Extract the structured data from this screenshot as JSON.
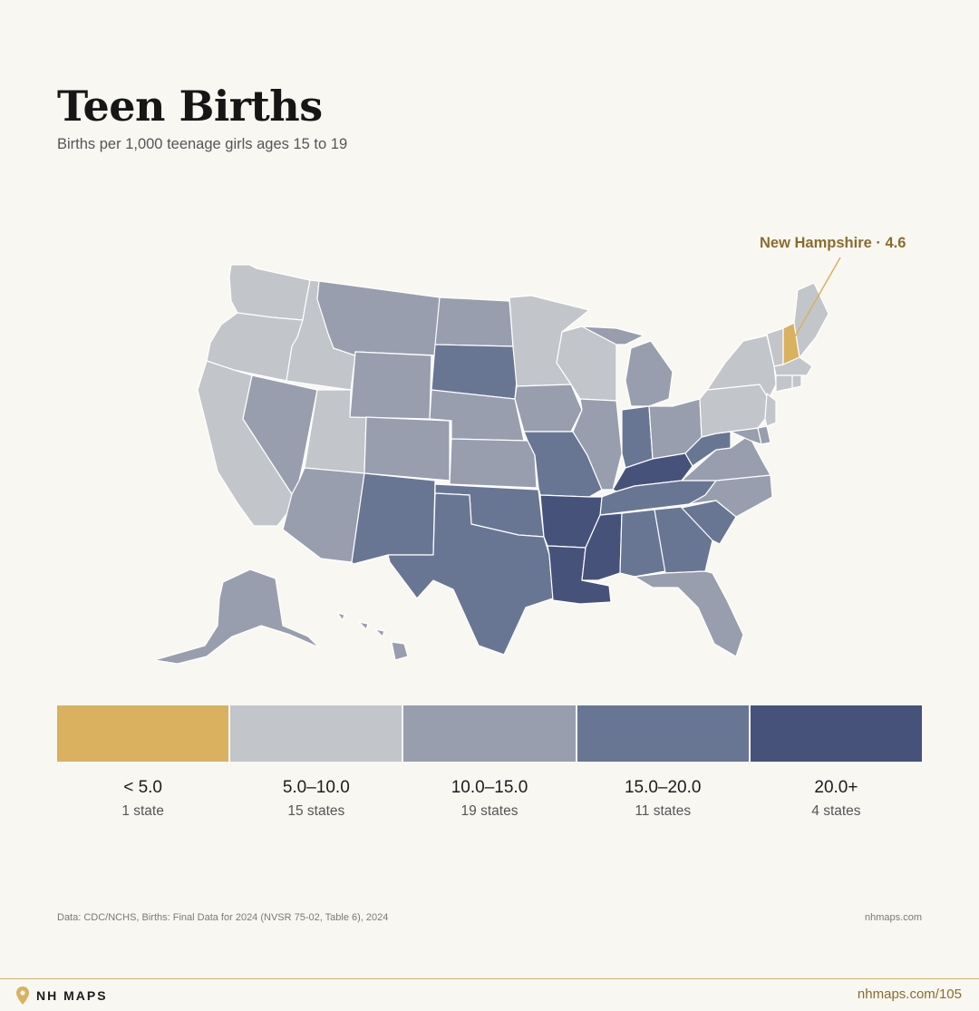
{
  "header": {
    "title": "Teen Births",
    "subtitle": "Births per 1,000 teenage girls ages 15 to 19"
  },
  "callout": {
    "label": "New Hampshire · 4.6",
    "state": "NH",
    "value": 4.6
  },
  "colors": {
    "c1": "#d9b15f",
    "c2": "#c2c5ca",
    "c3": "#989eae",
    "c4": "#697693",
    "c5": "#46527a",
    "background": "#f9f7f2",
    "accent": "#8a6d2c"
  },
  "legend": [
    {
      "range": "< 5.0",
      "count": "1 state"
    },
    {
      "range": "5.0–10.0",
      "count": "15 states"
    },
    {
      "range": "10.0–15.0",
      "count": "19 states"
    },
    {
      "range": "15.0–20.0",
      "count": "11 states"
    },
    {
      "range": "20.0+",
      "count": "4 states"
    }
  ],
  "states": {
    "WA": 2,
    "OR": 2,
    "CA": 2,
    "ID": 2,
    "UT": 2,
    "MN": 2,
    "WI": 2,
    "NY": 2,
    "PA": 2,
    "VT": 2,
    "ME": 2,
    "MA": 2,
    "CT": 2,
    "RI": 2,
    "NJ": 2,
    "NV": 3,
    "MT": 3,
    "WY": 3,
    "CO": 3,
    "ND": 3,
    "NE": 3,
    "KS": 3,
    "IA": 3,
    "IL": 3,
    "MI": 3,
    "OH": 3,
    "VA": 3,
    "NC": 3,
    "FL": 3,
    "AZ": 3,
    "AK": 3,
    "HI": 3,
    "MD": 3,
    "DE": 3,
    "NM": 4,
    "TX": 4,
    "OK": 4,
    "SD": 4,
    "MO": 4,
    "IN": 4,
    "TN": 4,
    "AL": 4,
    "GA": 4,
    "SC": 4,
    "WV": 4,
    "AR": 5,
    "LA": 5,
    "MS": 5,
    "KY": 5,
    "NH": 1
  },
  "footer": {
    "source": "Data: CDC/NCHS, Births: Final Data for 2024 (NVSR 75-02, Table 6), 2024",
    "site": "nhmaps.com",
    "brand": "NH MAPS",
    "page_url": "nhmaps.com/105"
  }
}
